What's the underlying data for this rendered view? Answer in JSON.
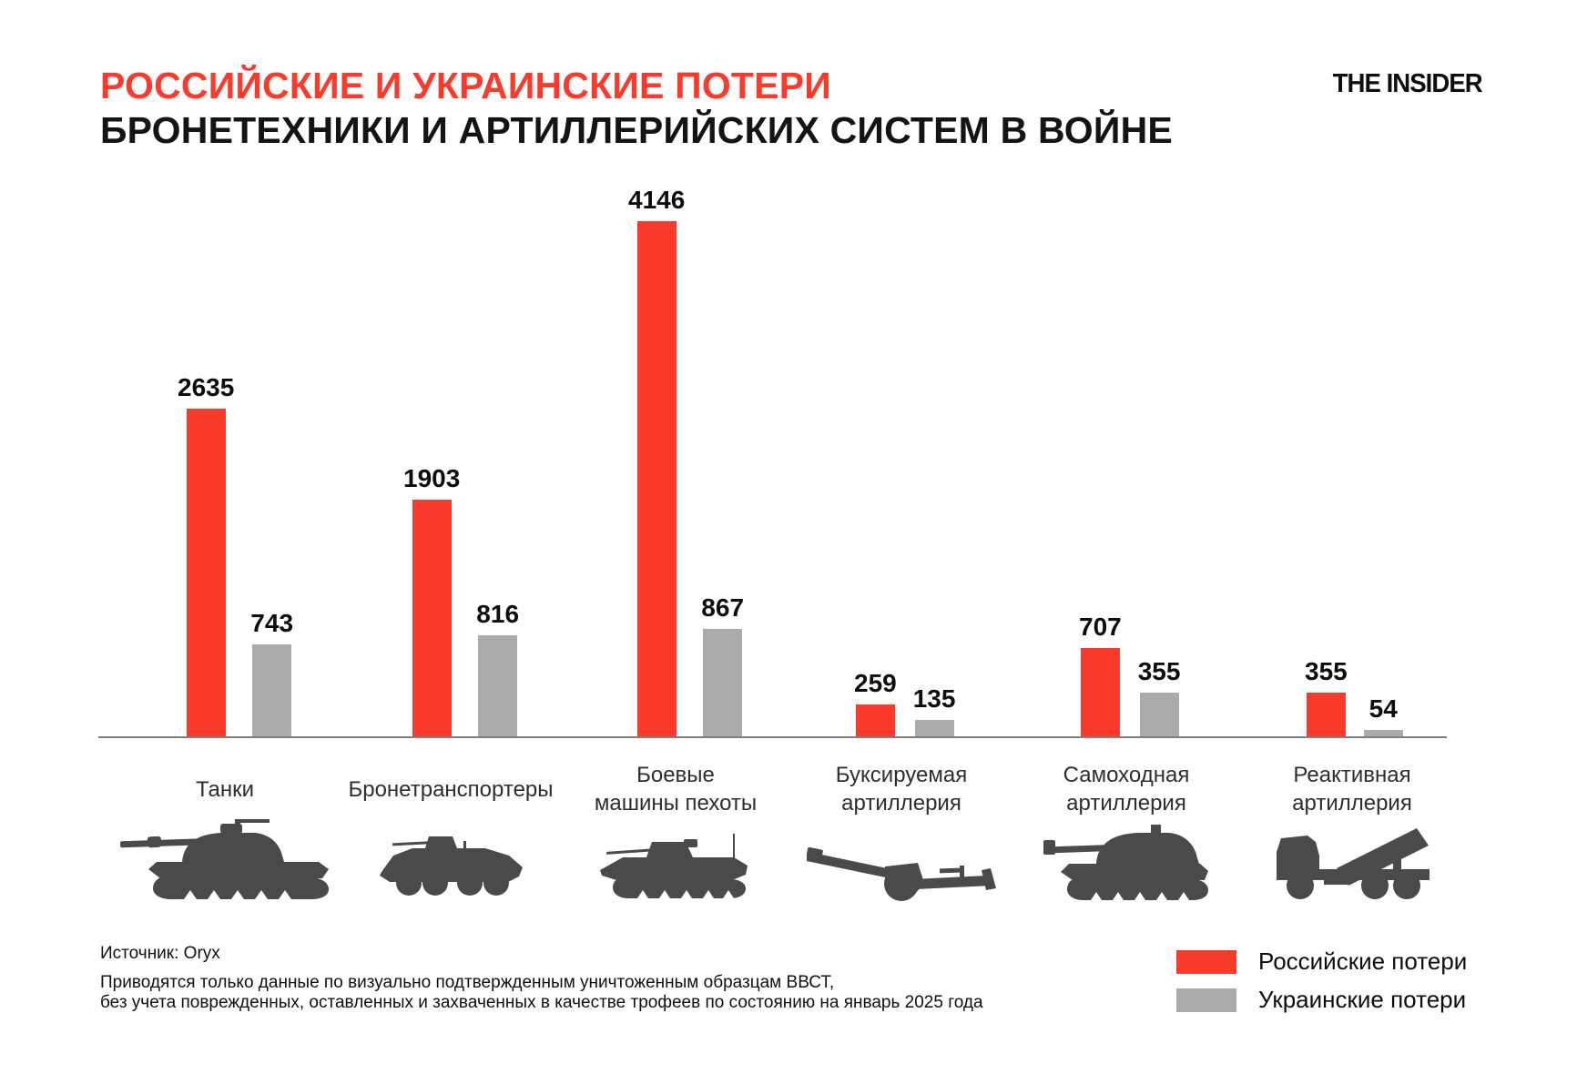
{
  "header": {
    "title_line1": "РОССИЙСКИЕ И УКРАИНСКИЕ ПОТЕРИ",
    "title_line2": "БРОНЕТЕХНИКИ И АРТИЛЛЕРИЙСКИХ СИСТЕМ В ВОЙНЕ",
    "logo": "THE INSIDER"
  },
  "chart_data": {
    "type": "bar",
    "categories": [
      "Танки",
      "Бронетранспортеры",
      "Боевые машины пехоты",
      "Буксируемая артиллерия",
      "Самоходная артиллерия",
      "Реактивная артиллерия"
    ],
    "category_lines": [
      [
        "Танки"
      ],
      [
        "Бронетранспортеры"
      ],
      [
        "Боевые",
        "машины пехоты"
      ],
      [
        "Буксируемая",
        "артиллерия"
      ],
      [
        "Самоходная",
        "артиллерия"
      ],
      [
        "Реактивная",
        "артиллерия"
      ]
    ],
    "series": [
      {
        "name": "Российские потери",
        "color": "#fa3b2c",
        "values": [
          2635,
          1903,
          4146,
          259,
          707,
          355
        ]
      },
      {
        "name": "Украинские потери",
        "color": "#ababab",
        "values": [
          743,
          816,
          867,
          135,
          355,
          54
        ]
      }
    ],
    "ylim": [
      0,
      4146
    ],
    "grid": false,
    "value_labels": true,
    "legend_position": "bottom-right",
    "icons": [
      "tank-icon",
      "apc-icon",
      "ifv-icon",
      "towed-artillery-icon",
      "self-propelled-artillery-icon",
      "mlrs-icon"
    ]
  },
  "legend": {
    "items": [
      {
        "label": "Российские потери",
        "color": "#fa3b2c"
      },
      {
        "label": "Украинские потери",
        "color": "#ababab"
      }
    ]
  },
  "footer": {
    "source": "Источник: Oryx",
    "note_line1": "Приводятся только данные по визуально подтвержденным уничтоженным образцам ВВСТ,",
    "note_line2": "без учета поврежденных, оставленных и захваченных в качестве трофеев по состоянию на январь 2025 года"
  },
  "colors": {
    "accent_red": "#fa3b2c",
    "bar_gray": "#ababab",
    "silhouette_gray": "#4a4a4a",
    "axis_gray": "#7f7f7f"
  }
}
